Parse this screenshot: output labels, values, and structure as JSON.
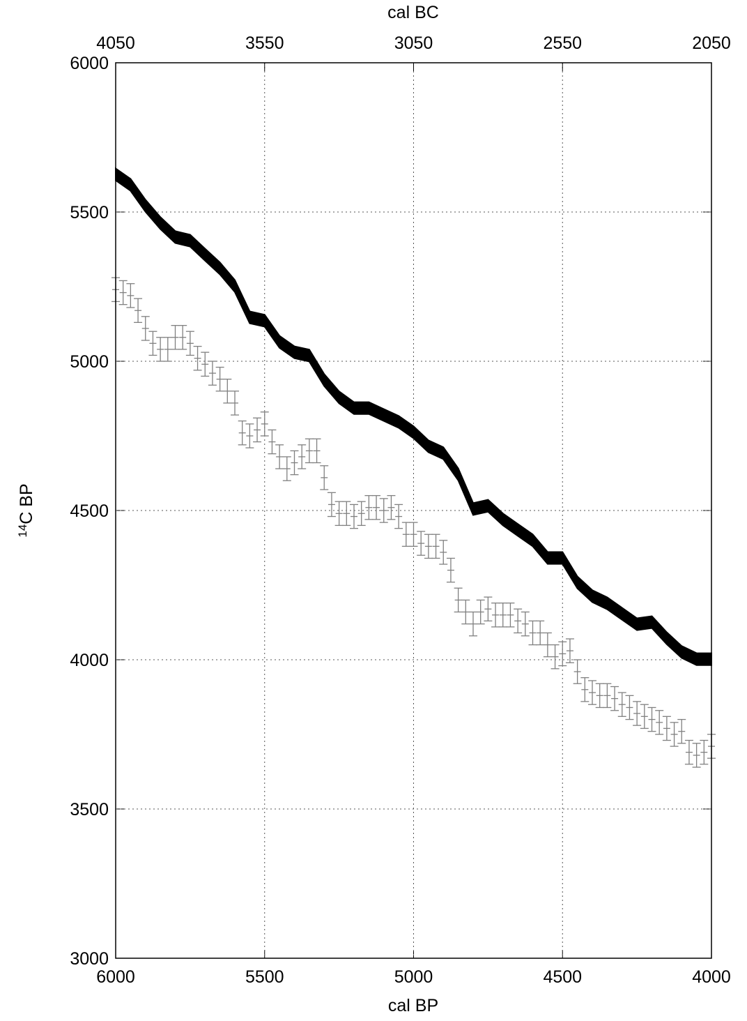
{
  "chart_data": {
    "type": "errorbar",
    "x_label": "cal BP",
    "x2_label": "cal BC",
    "y_label_superscript": "14",
    "y_label": "C BP",
    "xlim": [
      6000,
      4000
    ],
    "xticks": [
      6000,
      5500,
      5000,
      4500,
      4000
    ],
    "x2lim": [
      4050,
      2050
    ],
    "x2ticks": [
      4050,
      3550,
      3050,
      2550,
      2050
    ],
    "ylim": [
      3000,
      6000
    ],
    "yticks": [
      3000,
      3500,
      4000,
      4500,
      5000,
      5500,
      6000
    ],
    "grid": true,
    "series": [
      {
        "style": "band",
        "color": "#000000",
        "x": [
          6000,
          5950,
          5900,
          5850,
          5800,
          5750,
          5700,
          5650,
          5600,
          5550,
          5500,
          5450,
          5400,
          5350,
          5300,
          5250,
          5200,
          5150,
          5100,
          5050,
          5000,
          4950,
          4900,
          4850,
          4800,
          4750,
          4700,
          4650,
          4600,
          4550,
          4500,
          4450,
          4400,
          4350,
          4300,
          4250,
          4200,
          4150,
          4100,
          4050,
          4000
        ],
        "values": [
          5626,
          5591,
          5521,
          5463,
          5416,
          5404,
          5357,
          5311,
          5252,
          5147,
          5136,
          5065,
          5030,
          5019,
          4937,
          4879,
          4843,
          4843,
          4820,
          4797,
          4762,
          4715,
          4692,
          4621,
          4505,
          4516,
          4470,
          4435,
          4400,
          4341,
          4341,
          4259,
          4213,
          4189,
          4154,
          4119,
          4126,
          4072,
          4026,
          4002,
          4002
        ],
        "errors": [
          20,
          20,
          20,
          20,
          20,
          20,
          20,
          20,
          20,
          20,
          20,
          20,
          20,
          20,
          20,
          20,
          20,
          20,
          20,
          20,
          20,
          20,
          20,
          20,
          20,
          20,
          20,
          20,
          20,
          20,
          20,
          20,
          20,
          20,
          20,
          20,
          20,
          20,
          20,
          20,
          20
        ]
      },
      {
        "style": "points",
        "color": "#808080",
        "x": [
          6000,
          5975,
          5950,
          5925,
          5900,
          5875,
          5850,
          5825,
          5800,
          5775,
          5750,
          5725,
          5700,
          5675,
          5650,
          5625,
          5600,
          5575,
          5550,
          5525,
          5500,
          5475,
          5450,
          5425,
          5400,
          5375,
          5350,
          5325,
          5300,
          5275,
          5250,
          5225,
          5200,
          5175,
          5150,
          5125,
          5100,
          5075,
          5050,
          5025,
          5000,
          4975,
          4950,
          4925,
          4900,
          4875,
          4850,
          4825,
          4800,
          4775,
          4750,
          4725,
          4700,
          4675,
          4650,
          4625,
          4600,
          4575,
          4550,
          4525,
          4500,
          4475,
          4450,
          4425,
          4400,
          4375,
          4350,
          4325,
          4300,
          4275,
          4250,
          4225,
          4200,
          4175,
          4150,
          4125,
          4100,
          4075,
          4050,
          4025,
          4000
        ],
        "values": [
          5240,
          5230,
          5220,
          5170,
          5110,
          5060,
          5040,
          5040,
          5080,
          5080,
          5060,
          5010,
          4990,
          4960,
          4940,
          4900,
          4860,
          4760,
          4750,
          4770,
          4790,
          4730,
          4680,
          4640,
          4660,
          4680,
          4700,
          4700,
          4610,
          4520,
          4490,
          4490,
          4480,
          4490,
          4510,
          4510,
          4500,
          4510,
          4480,
          4420,
          4420,
          4390,
          4380,
          4380,
          4360,
          4300,
          4200,
          4160,
          4120,
          4160,
          4170,
          4150,
          4150,
          4150,
          4130,
          4120,
          4090,
          4090,
          4050,
          4010,
          4020,
          4030,
          3960,
          3900,
          3890,
          3880,
          3880,
          3870,
          3850,
          3840,
          3820,
          3810,
          3800,
          3790,
          3770,
          3750,
          3760,
          3690,
          3680,
          3690,
          3710
        ],
        "errors": [
          40,
          40,
          40,
          40,
          40,
          40,
          40,
          40,
          40,
          40,
          40,
          40,
          40,
          40,
          40,
          40,
          40,
          40,
          40,
          40,
          40,
          40,
          40,
          40,
          40,
          40,
          40,
          40,
          40,
          40,
          40,
          40,
          40,
          40,
          40,
          40,
          40,
          40,
          40,
          40,
          40,
          40,
          40,
          40,
          40,
          40,
          40,
          40,
          40,
          40,
          40,
          40,
          40,
          40,
          40,
          40,
          40,
          40,
          40,
          40,
          40,
          40,
          40,
          40,
          40,
          40,
          40,
          40,
          40,
          40,
          40,
          40,
          40,
          40,
          40,
          40,
          40,
          40,
          40,
          40,
          40
        ]
      }
    ]
  }
}
